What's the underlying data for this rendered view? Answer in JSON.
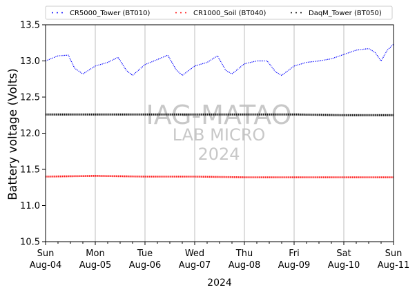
{
  "chart_data": {
    "type": "line",
    "title": "",
    "xlabel": "2024",
    "ylabel": "Battery voltage (Volts)",
    "xlim": [
      "2024-08-04",
      "2024-08-11"
    ],
    "ylim": [
      10.5,
      13.5
    ],
    "yticks": [
      "10.5",
      "11.0",
      "11.5",
      "12.0",
      "12.5",
      "13.0",
      "13.5"
    ],
    "xticks": [
      {
        "date": "2024-08-04",
        "day": "Sun",
        "label": "Aug-04"
      },
      {
        "date": "2024-08-05",
        "day": "Mon",
        "label": "Aug-05"
      },
      {
        "date": "2024-08-06",
        "day": "Tue",
        "label": "Aug-06"
      },
      {
        "date": "2024-08-07",
        "day": "Wed",
        "label": "Aug-07"
      },
      {
        "date": "2024-08-08",
        "day": "Thu",
        "label": "Aug-08"
      },
      {
        "date": "2024-08-09",
        "day": "Fri",
        "label": "Aug-09"
      },
      {
        "date": "2024-08-10",
        "day": "Sat",
        "label": "Aug-10"
      },
      {
        "date": "2024-08-11",
        "day": "Sun",
        "label": "Aug-11"
      }
    ],
    "grid": "vertical",
    "legend_position": "top",
    "watermark": [
      "IAG-MATAO",
      "LAB MICRO",
      "2024"
    ],
    "series": [
      {
        "name": "CR5000_Tower (BT010)",
        "color": "#0000ff",
        "style": "dotted",
        "x": [
          "2024-08-04 00:00",
          "2024-08-04 06:00",
          "2024-08-04 11:00",
          "2024-08-04 14:00",
          "2024-08-04 18:00",
          "2024-08-05 00:00",
          "2024-08-05 06:00",
          "2024-08-05 11:00",
          "2024-08-05 15:00",
          "2024-08-05 18:00",
          "2024-08-06 00:00",
          "2024-08-06 06:00",
          "2024-08-06 11:00",
          "2024-08-06 15:00",
          "2024-08-06 18:00",
          "2024-08-07 00:00",
          "2024-08-07 06:00",
          "2024-08-07 11:00",
          "2024-08-07 15:00",
          "2024-08-07 18:00",
          "2024-08-08 00:00",
          "2024-08-08 06:00",
          "2024-08-08 11:00",
          "2024-08-08 15:00",
          "2024-08-08 18:00",
          "2024-08-09 00:00",
          "2024-08-09 06:00",
          "2024-08-09 12:00",
          "2024-08-09 18:00",
          "2024-08-10 00:00",
          "2024-08-10 06:00",
          "2024-08-10 12:00",
          "2024-08-10 15:00",
          "2024-08-10 18:00",
          "2024-08-10 21:00",
          "2024-08-11 00:00"
        ],
        "y": [
          13.0,
          13.07,
          13.08,
          12.9,
          12.82,
          12.93,
          12.98,
          13.05,
          12.87,
          12.8,
          12.95,
          13.02,
          13.08,
          12.88,
          12.8,
          12.93,
          12.98,
          13.07,
          12.87,
          12.82,
          12.96,
          13.0,
          13.0,
          12.85,
          12.8,
          12.93,
          12.98,
          13.0,
          13.03,
          13.09,
          13.15,
          13.17,
          13.12,
          13.0,
          13.15,
          13.23
        ]
      },
      {
        "name": "CR1000_Soil (BT040)",
        "color": "#ff0000",
        "style": "dotted",
        "x": [
          "2024-08-04 00:00",
          "2024-08-05 00:00",
          "2024-08-06 00:00",
          "2024-08-07 00:00",
          "2024-08-08 00:00",
          "2024-08-09 00:00",
          "2024-08-10 00:00",
          "2024-08-11 00:00"
        ],
        "y": [
          11.4,
          11.41,
          11.4,
          11.4,
          11.39,
          11.39,
          11.39,
          11.39
        ]
      },
      {
        "name": "DaqM_Tower (BT050)",
        "color": "#000000",
        "style": "dotted",
        "x": [
          "2024-08-04 00:00",
          "2024-08-05 00:00",
          "2024-08-06 00:00",
          "2024-08-07 00:00",
          "2024-08-08 00:00",
          "2024-08-09 00:00",
          "2024-08-10 00:00",
          "2024-08-11 00:00"
        ],
        "y": [
          12.26,
          12.26,
          12.26,
          12.26,
          12.26,
          12.26,
          12.25,
          12.25
        ]
      }
    ]
  }
}
